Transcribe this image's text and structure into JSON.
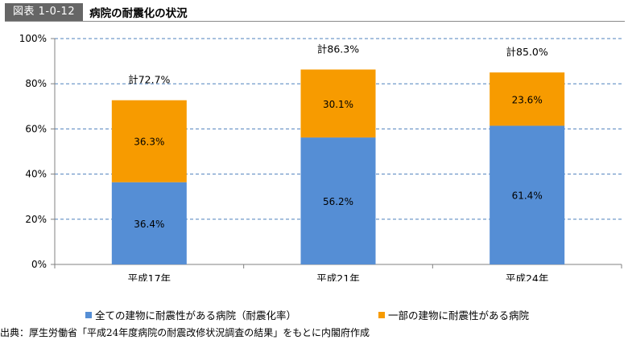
{
  "header": {
    "figure_label": "図表 1-0-12",
    "title": "病院の耐震化の状況"
  },
  "chart_data": {
    "type": "bar",
    "stacked": true,
    "categories": [
      "平成17年",
      "平成21年",
      "平成24年"
    ],
    "series": [
      {
        "name": "全ての建物に耐震性がある病院（耐震化率）",
        "values": [
          36.4,
          56.2,
          61.4
        ],
        "labels": [
          "36.4%",
          "56.2%",
          "61.4%"
        ],
        "color": "#558ED5"
      },
      {
        "name": "一部の建物に耐震性がある病院",
        "values": [
          36.3,
          30.1,
          23.6
        ],
        "labels": [
          "36.3%",
          "30.1%",
          "23.6%"
        ],
        "color": "#F79B00"
      }
    ],
    "totals": [
      72.7,
      86.3,
      85.0
    ],
    "total_labels": [
      "計72.7%",
      "計86.3%",
      "計85.0%"
    ],
    "ylim": [
      0,
      100
    ],
    "yticks": [
      0,
      20,
      40,
      60,
      80,
      100
    ],
    "ytick_labels": [
      "0%",
      "20%",
      "40%",
      "60%",
      "80%",
      "100%"
    ],
    "grid": "dashed",
    "legend_position": "bottom"
  },
  "source": "出典：厚生労働省「平成24年度病院の耐震改修状況調査の結果」をもとに内閣府作成"
}
